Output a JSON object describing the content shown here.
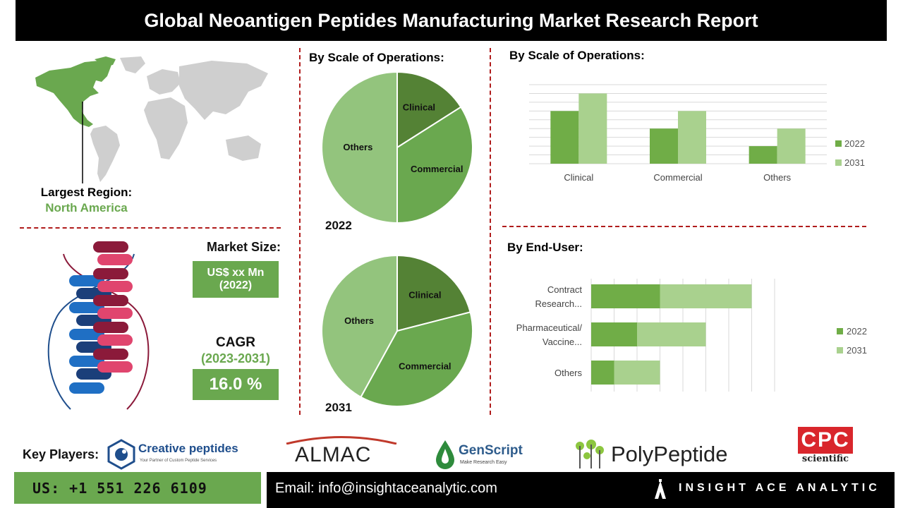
{
  "title": "Global Neoantigen Peptides Manufacturing Market Research Report",
  "region": {
    "label": "Largest Region:",
    "value": "North America"
  },
  "market": {
    "size_label": "Market Size:",
    "size_value": "US$ xx Mn",
    "size_year": "(2022)",
    "cagr_label": "CAGR",
    "cagr_period": "(2023-2031)",
    "cagr_value": "16.0 %"
  },
  "pies": {
    "title": "By Scale of Operations:",
    "year_2022": "2022",
    "year_2031": "2031"
  },
  "scale_bar": {
    "title": "By Scale of Operations:"
  },
  "enduser_bar": {
    "title": "By End-User:"
  },
  "colors": {
    "dark_green": "#548235",
    "mid_green": "#70ad47",
    "light_green": "#a9d18e",
    "pie_dark": "#548235",
    "pie_mid": "#6aa84f",
    "pie_light": "#93c47d",
    "accent_red": "#b01c1c"
  },
  "chart_data": [
    {
      "type": "pie",
      "id": "pie-2022",
      "labels": [
        "Clinical",
        "Commercial",
        "Others"
      ],
      "values": [
        16,
        34,
        50
      ],
      "caption": "2022"
    },
    {
      "type": "pie",
      "id": "pie-2031",
      "labels": [
        "Clinical",
        "Commercial",
        "Others"
      ],
      "values": [
        21,
        37,
        42
      ],
      "caption": "2031"
    },
    {
      "type": "bar",
      "id": "scale-bar",
      "categories": [
        "Clinical",
        "Commercial",
        "Others"
      ],
      "series": [
        {
          "name": "2022",
          "values": [
            3,
            2,
            1
          ]
        },
        {
          "name": "2031",
          "values": [
            4,
            3,
            2
          ]
        }
      ],
      "ylim": [
        0,
        4.5
      ],
      "legend": "right"
    },
    {
      "type": "bar",
      "orientation": "horizontal",
      "stacked": true,
      "id": "enduser-bar",
      "categories": [
        "Contract Research...",
        "Pharmaceutical/ Vaccine...",
        "Others"
      ],
      "series": [
        {
          "name": "2022",
          "values": [
            3,
            2,
            1
          ]
        },
        {
          "name": "2031",
          "values": [
            4,
            3,
            2
          ]
        }
      ],
      "xlim": [
        0,
        8
      ],
      "legend": "right"
    }
  ],
  "key_players": {
    "label": "Key Players:",
    "creative": "Creative peptides",
    "creative_tag": "Your Partner of Custom Peptide Services",
    "almac": "ALMAC",
    "genscript": "GenScript",
    "genscript_tag": "Make Research Easy",
    "polypeptide": "PolyPeptide",
    "cpc": "CPC",
    "cpc_sub": "scientific"
  },
  "footer": {
    "phone": "US: +1 551 226 6109",
    "email": "Email: info@insightaceanalytic.com",
    "brand": "INSIGHT ACE ANALYTIC"
  }
}
